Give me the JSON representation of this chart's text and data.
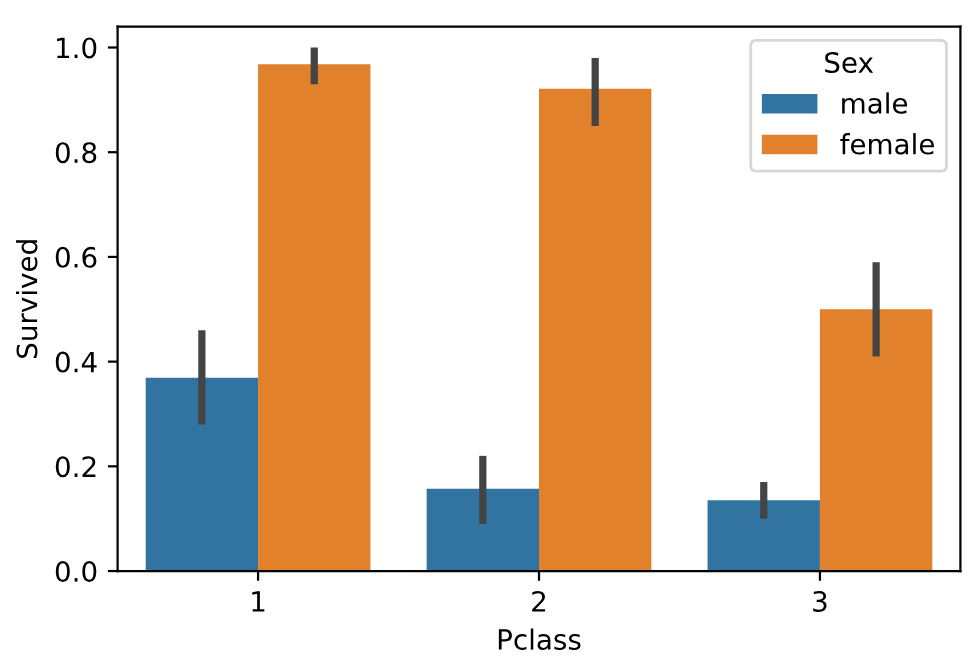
{
  "chart_data": {
    "type": "bar",
    "xlabel": "Pclass",
    "ylabel": "Survived",
    "legend_title": "Sex",
    "categories": [
      "1",
      "2",
      "3"
    ],
    "series": [
      {
        "name": "male",
        "color": "#3274a1",
        "values": [
          0.369,
          0.157,
          0.135
        ],
        "errors": [
          [
            0.28,
            0.46
          ],
          [
            0.09,
            0.22
          ],
          [
            0.1,
            0.17
          ]
        ]
      },
      {
        "name": "female",
        "color": "#e1812c",
        "values": [
          0.968,
          0.921,
          0.5
        ],
        "errors": [
          [
            0.93,
            1.0
          ],
          [
            0.85,
            0.98
          ],
          [
            0.41,
            0.59
          ]
        ]
      }
    ],
    "ylim": [
      0,
      1.04
    ],
    "yticks": [
      {
        "value": 0,
        "label": "0.0"
      },
      0.2,
      0.4,
      0.6,
      0.8,
      {
        "value": 1,
        "label": "1.0"
      }
    ],
    "grid": false,
    "legend": "top right"
  }
}
